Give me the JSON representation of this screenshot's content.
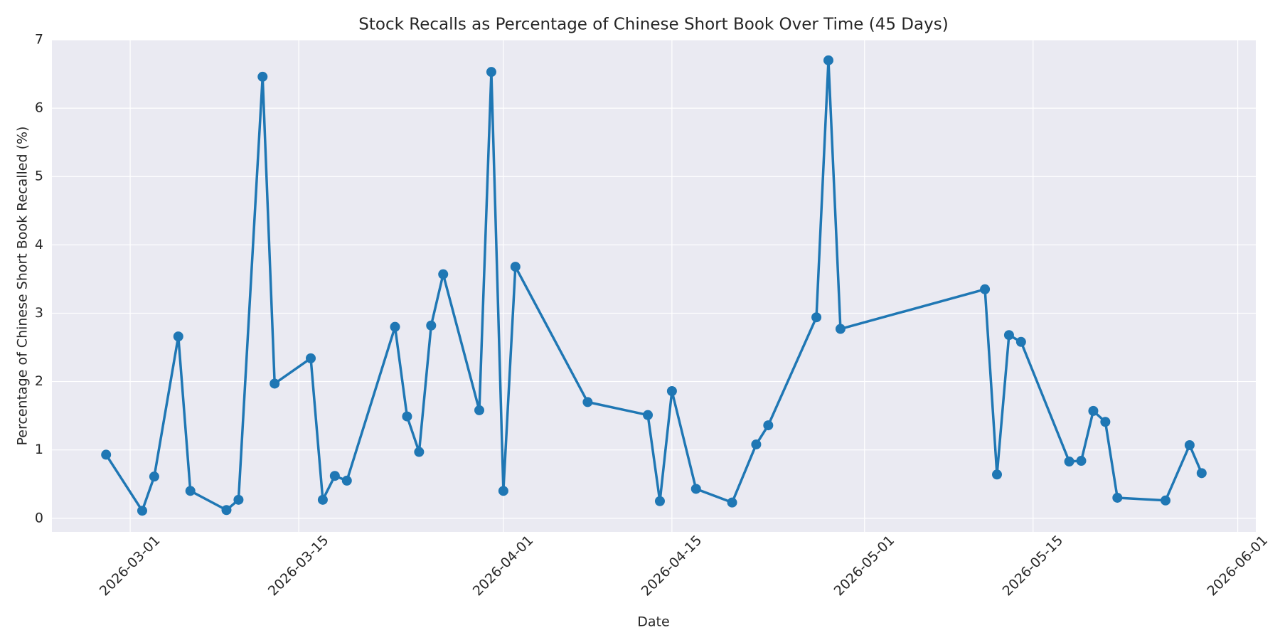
{
  "chart_data": {
    "type": "line",
    "title": "Stock Recalls as Percentage of Chinese Short Book Over Time (45 Days)",
    "x_label": "Date",
    "y_label": "Percentage of Chinese Short Book Recalled (%)",
    "x": [
      "2026-02-27",
      "2026-03-02",
      "2026-03-03",
      "2026-03-05",
      "2026-03-06",
      "2026-03-09",
      "2026-03-10",
      "2026-03-12",
      "2026-03-13",
      "2026-03-16",
      "2026-03-17",
      "2026-03-18",
      "2026-03-19",
      "2026-03-23",
      "2026-03-24",
      "2026-03-25",
      "2026-03-26",
      "2026-03-27",
      "2026-03-30",
      "2026-03-31",
      "2026-04-01",
      "2026-04-02",
      "2026-04-08",
      "2026-04-13",
      "2026-04-14",
      "2026-04-15",
      "2026-04-17",
      "2026-04-20",
      "2026-04-22",
      "2026-04-23",
      "2026-04-27",
      "2026-04-28",
      "2026-04-29",
      "2026-05-11",
      "2026-05-12",
      "2026-05-13",
      "2026-05-14",
      "2026-05-18",
      "2026-05-19",
      "2026-05-20",
      "2026-05-21",
      "2026-05-22",
      "2026-05-26",
      "2026-05-28",
      "2026-05-29"
    ],
    "values": [
      0.93,
      0.11,
      0.61,
      2.66,
      0.4,
      0.12,
      0.27,
      6.46,
      1.97,
      2.34,
      0.27,
      0.62,
      0.55,
      2.8,
      1.49,
      0.97,
      2.82,
      3.57,
      1.58,
      6.53,
      0.4,
      3.68,
      1.7,
      1.51,
      0.25,
      1.86,
      0.43,
      0.23,
      1.08,
      1.36,
      2.94,
      6.7,
      2.77,
      3.35,
      0.64,
      2.68,
      2.58,
      0.83,
      0.84,
      1.57,
      1.41,
      0.3,
      0.26,
      1.07,
      0.66
    ],
    "color": "#1f77b4",
    "xlim": [
      "2026-02-22T12:00",
      "2026-06-02T12:00"
    ],
    "xticks": [
      "2026-03-01",
      "2026-03-15",
      "2026-04-01",
      "2026-04-15",
      "2026-05-01",
      "2026-05-15",
      "2026-06-01"
    ],
    "ylim": [
      -0.2,
      7
    ],
    "yticks": [
      0,
      1,
      2,
      3,
      4,
      5,
      6,
      7
    ],
    "grid": true
  }
}
